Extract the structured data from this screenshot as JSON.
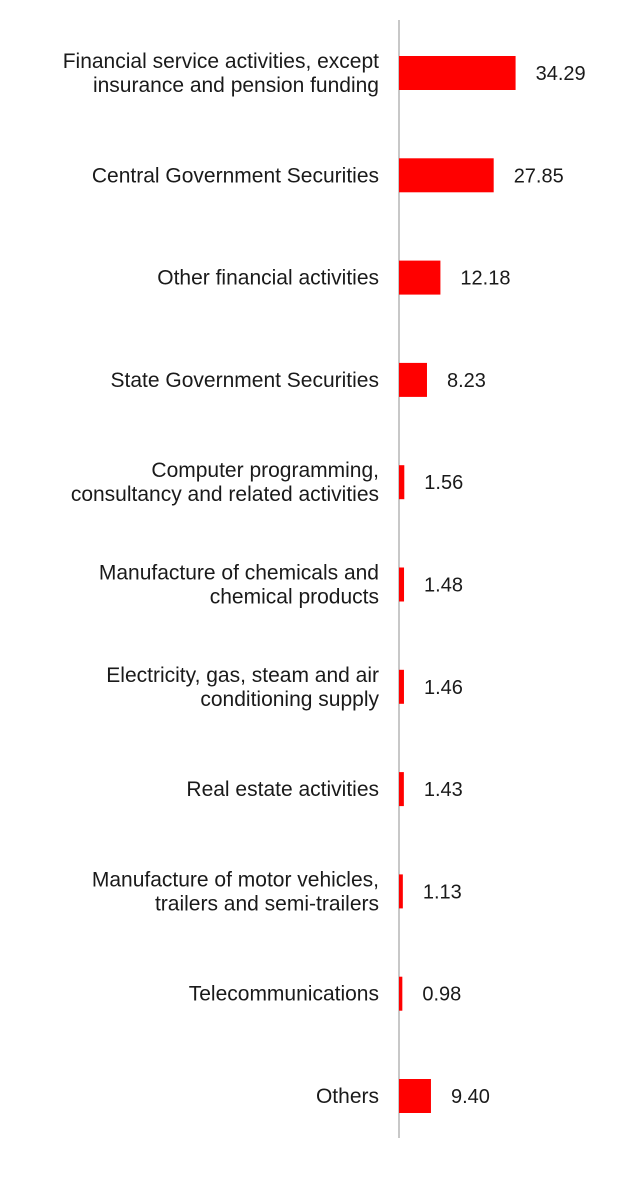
{
  "chart_data": {
    "type": "bar",
    "orientation": "horizontal",
    "categories": [
      "Financial service activities, except insurance and pension funding",
      "Central Government Securities",
      "Other financial activities",
      "State Government Securities",
      "Computer programming, consultancy and related activities",
      "Manufacture of chemicals and chemical products",
      "Electricity, gas, steam and air conditioning supply",
      "Real estate activities",
      "Manufacture of motor vehicles, trailers and semi-trailers",
      "Telecommunications",
      "Others"
    ],
    "category_lines": [
      [
        "Financial service activities, except",
        "insurance and pension funding"
      ],
      [
        "Central Government Securities"
      ],
      [
        "Other financial activities"
      ],
      [
        "State Government Securities"
      ],
      [
        "Computer programming,",
        "consultancy and related activities"
      ],
      [
        "Manufacture of chemicals and",
        "chemical products"
      ],
      [
        "Electricity, gas, steam and air",
        "conditioning supply"
      ],
      [
        "Real estate activities"
      ],
      [
        "Manufacture of motor vehicles,",
        "trailers and semi-trailers"
      ],
      [
        "Telecommunications"
      ],
      [
        "Others"
      ]
    ],
    "values": [
      34.29,
      27.85,
      12.18,
      8.23,
      1.56,
      1.48,
      1.46,
      1.43,
      1.13,
      0.98,
      9.4
    ],
    "value_labels": [
      "34.29",
      "27.85",
      "12.18",
      "8.23",
      "1.56",
      "1.48",
      "1.46",
      "1.43",
      "1.13",
      "0.98",
      "9.40"
    ],
    "title": "",
    "xlabel": "",
    "ylabel": "",
    "xlim": [
      0,
      50
    ],
    "grid": false,
    "legend": "none",
    "bar_color": "#ff0000",
    "axis_color": "#c8c8c8"
  }
}
